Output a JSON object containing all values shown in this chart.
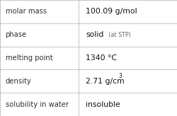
{
  "rows": [
    {
      "label": "molar mass",
      "value": "100.09 g/mol",
      "type": "plain"
    },
    {
      "label": "phase",
      "value": "solid",
      "type": "suffix",
      "suffix": " (at STP)"
    },
    {
      "label": "melting point",
      "value": "1340 °C",
      "type": "plain"
    },
    {
      "label": "density",
      "value": "2.71 g/cm",
      "type": "super",
      "sup": "3"
    },
    {
      "label": "solubility in water",
      "value": "insoluble",
      "type": "plain"
    }
  ],
  "col_split": 0.445,
  "background": "#ffffff",
  "border_color": "#bbbbbb",
  "label_color": "#333333",
  "value_color": "#111111",
  "suffix_color": "#666666",
  "label_fontsize": 7.2,
  "value_fontsize": 7.8,
  "suffix_fontsize": 5.8,
  "sup_fontsize": 5.5,
  "font_family": "DejaVu Sans"
}
